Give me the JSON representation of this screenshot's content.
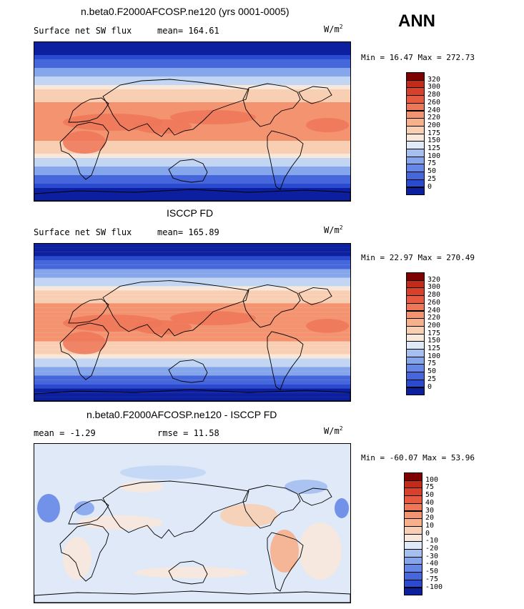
{
  "season": "ANN",
  "units_base": "W/m",
  "units_exp": "2",
  "colors": {
    "warm": [
      "#f8e8dc",
      "#f9cfb4",
      "#f7b08c",
      "#f49370",
      "#ee7758",
      "#e55a40",
      "#d8402b",
      "#c22a1a",
      "#a31410",
      "#7f0000"
    ],
    "cool": [
      "#dfe9f8",
      "#c2d6f4",
      "#a4bff0",
      "#86a6ec",
      "#6687e6",
      "#4667dc",
      "#2a4bd0",
      "#1a34bb",
      "#0c1f9e",
      "#04147d"
    ]
  },
  "panels": [
    {
      "title": "n.beta0.F2000AFCOSP.ne120 (yrs 0001-0005)",
      "left_text": "Surface net SW flux",
      "right_text": "mean= 164.61",
      "minmax": "Min =  16.47 Max = 272.73",
      "levels": [
        "320",
        "300",
        "280",
        "260",
        "240",
        "220",
        "200",
        "175",
        "150",
        "125",
        "100",
        "75",
        "50",
        "25",
        "0"
      ]
    },
    {
      "title": "ISCCP FD",
      "left_text": "Surface net SW flux",
      "right_text": "mean= 165.89",
      "minmax": "Min =  22.97 Max = 270.49",
      "levels": [
        "320",
        "300",
        "280",
        "260",
        "240",
        "220",
        "200",
        "175",
        "150",
        "125",
        "100",
        "75",
        "50",
        "25",
        "0"
      ]
    },
    {
      "title": "n.beta0.F2000AFCOSP.ne120 - ISCCP FD",
      "left_text": "mean =  -1.29",
      "right_text": "rmse =  11.58",
      "minmax": "Min = -60.07 Max =  53.96",
      "levels": [
        "100",
        "75",
        "50",
        "40",
        "30",
        "20",
        "10",
        "0",
        "-10",
        "-20",
        "-30",
        "-40",
        "-50",
        "-75",
        "-100"
      ]
    }
  ]
}
